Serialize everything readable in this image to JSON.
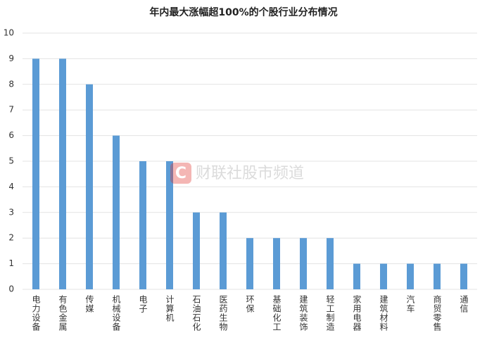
{
  "chart_data": {
    "type": "bar",
    "title": "年内最大涨幅超100%的个股行业分布情况",
    "categories": [
      "电力设备",
      "有色金属",
      "传媒",
      "机械设备",
      "电子",
      "计算机",
      "石油石化",
      "医药生物",
      "环保",
      "基础化工",
      "建筑装饰",
      "轻工制造",
      "家用电器",
      "建筑材料",
      "汽车",
      "商贸零售",
      "通信"
    ],
    "values": [
      9,
      9,
      8,
      6,
      5,
      5,
      3,
      3,
      2,
      2,
      2,
      2,
      1,
      1,
      1,
      1,
      1
    ],
    "color": "#5b9bd5",
    "ylim": [
      0,
      10
    ],
    "yticks": [
      0,
      1,
      2,
      3,
      4,
      5,
      6,
      7,
      8,
      9,
      10
    ],
    "grid": true,
    "watermark": "财联社股市频道"
  }
}
